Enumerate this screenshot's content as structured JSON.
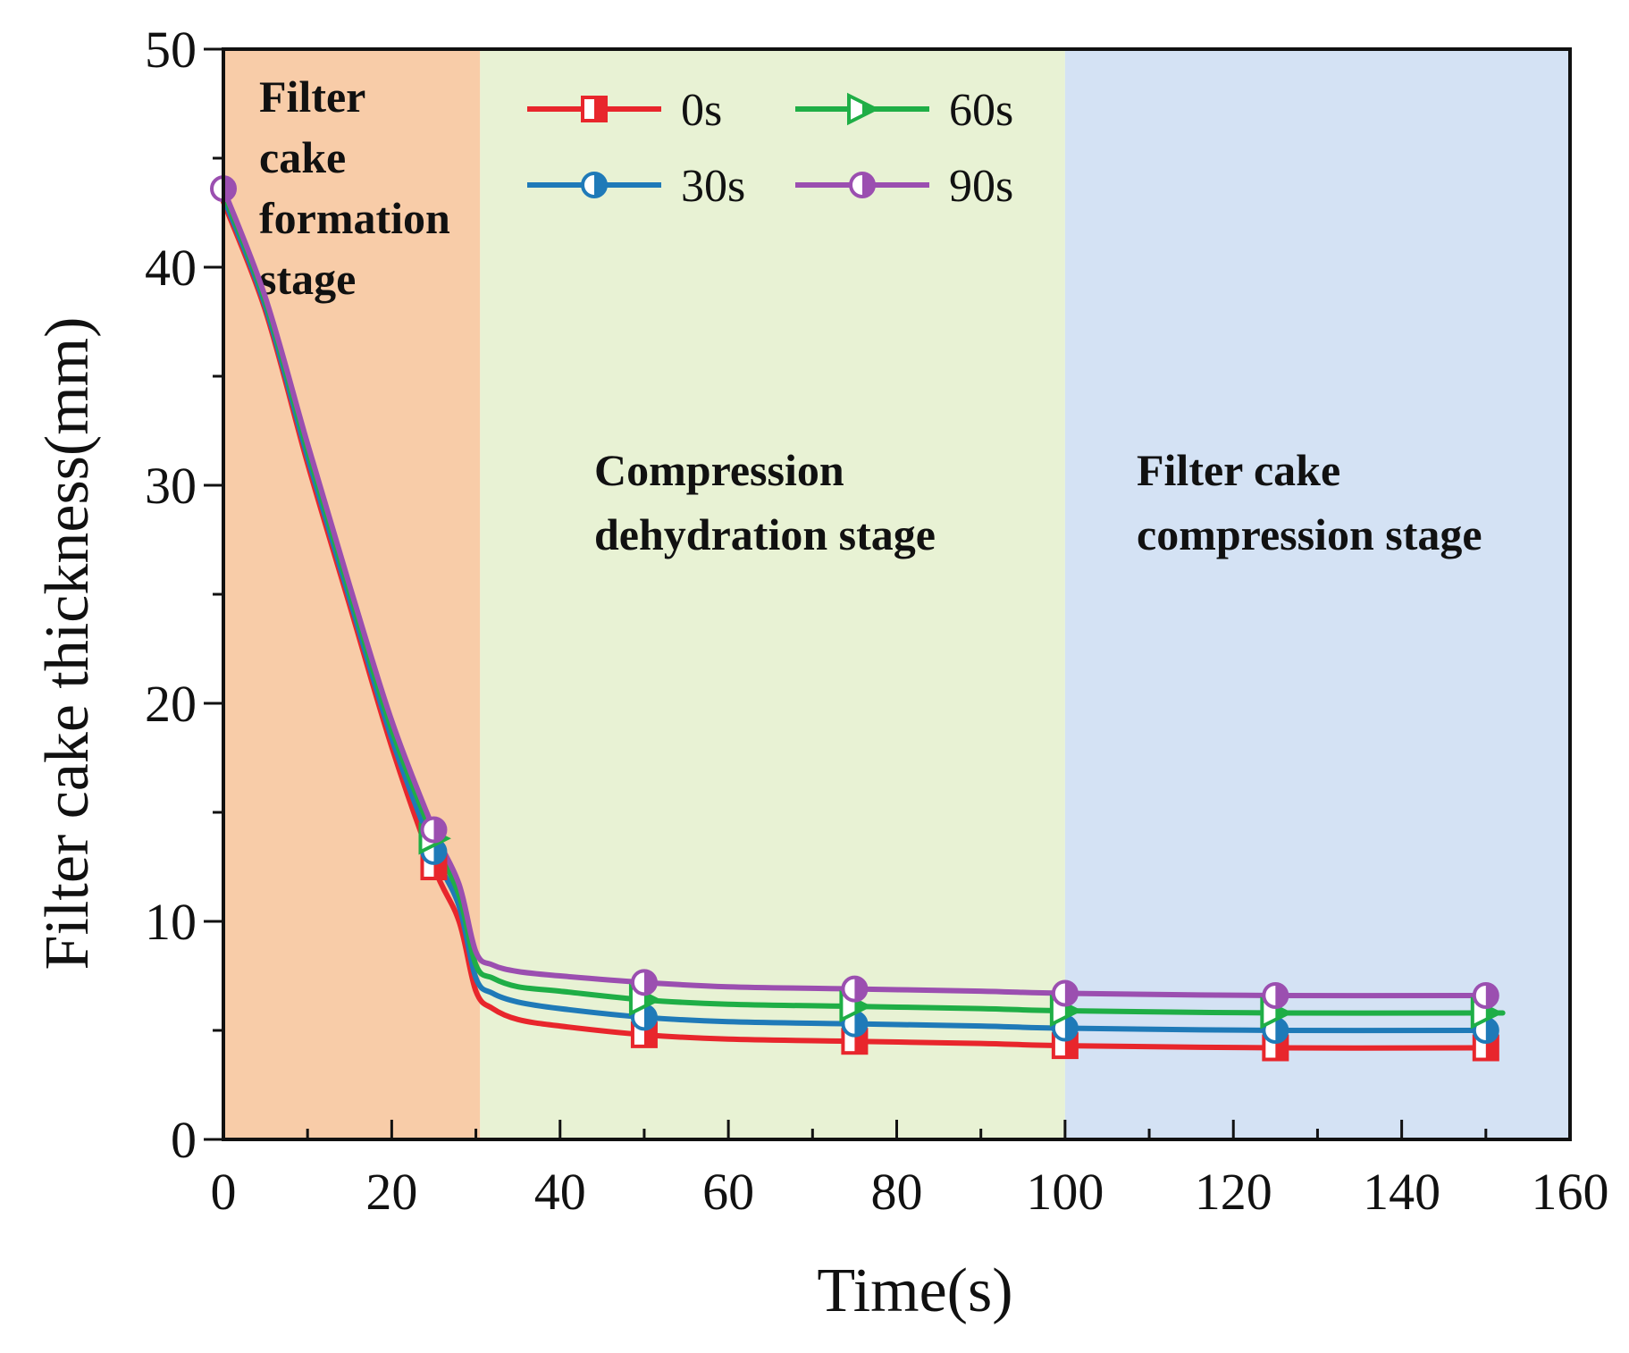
{
  "chart_data": {
    "type": "line",
    "xlabel": "Time(s)",
    "ylabel": "Filter cake thickness(mm)",
    "xlim": [
      0,
      160
    ],
    "ylim": [
      0,
      50
    ],
    "x_ticks": [
      0,
      20,
      40,
      60,
      80,
      100,
      120,
      140,
      160
    ],
    "y_ticks": [
      0,
      10,
      20,
      30,
      40,
      50
    ],
    "grid": false,
    "legend_position": "top-center",
    "stages": [
      {
        "label_lines": [
          "Filter",
          "cake",
          "formation",
          "stage"
        ],
        "x_range": [
          0,
          30.5
        ],
        "color": "#f8cca8"
      },
      {
        "label_lines": [
          "Compression",
          "dehydration stage"
        ],
        "x_range": [
          30.5,
          100
        ],
        "color": "#e8f2d4"
      },
      {
        "label_lines": [
          "Filter cake",
          "compression stage"
        ],
        "x_range": [
          100,
          160
        ],
        "color": "#d4e2f4"
      }
    ],
    "series": [
      {
        "name": "0s",
        "color": "#e8262c",
        "marker": "square-half",
        "x": [
          0,
          5,
          10,
          15,
          20,
          25,
          28,
          30,
          32,
          35,
          40,
          50,
          60,
          75,
          90,
          100,
          125,
          150
        ],
        "y": [
          43.0,
          38.0,
          31.0,
          24.5,
          18.0,
          12.5,
          10.0,
          6.8,
          6.0,
          5.5,
          5.2,
          4.8,
          4.6,
          4.5,
          4.4,
          4.3,
          4.2,
          4.2
        ],
        "marker_x": [
          25,
          50,
          75,
          100,
          125,
          150
        ],
        "marker_y": [
          12.5,
          4.8,
          4.5,
          4.3,
          4.2,
          4.2
        ]
      },
      {
        "name": "30s",
        "color": "#1f7ab8",
        "marker": "circle-half",
        "x": [
          0,
          5,
          10,
          15,
          20,
          25,
          28,
          30,
          32,
          35,
          40,
          50,
          60,
          75,
          90,
          100,
          125,
          150
        ],
        "y": [
          43.2,
          38.2,
          31.3,
          24.8,
          18.4,
          13.2,
          10.7,
          7.4,
          6.7,
          6.3,
          6.0,
          5.6,
          5.4,
          5.3,
          5.2,
          5.1,
          5.0,
          5.0
        ],
        "marker_x": [
          25,
          50,
          75,
          100,
          125,
          150
        ],
        "marker_y": [
          13.2,
          5.6,
          5.3,
          5.1,
          5.0,
          5.0
        ]
      },
      {
        "name": "60s",
        "color": "#1fae46",
        "marker": "triangle-half",
        "x": [
          0,
          5,
          10,
          15,
          20,
          25,
          28,
          30,
          32,
          35,
          40,
          50,
          60,
          75,
          90,
          100,
          125,
          152
        ],
        "y": [
          43.4,
          38.4,
          31.6,
          25.1,
          18.8,
          13.8,
          11.2,
          8.0,
          7.4,
          7.0,
          6.8,
          6.4,
          6.2,
          6.1,
          6.0,
          5.9,
          5.8,
          5.8
        ],
        "marker_x": [
          25,
          50,
          75,
          100,
          125,
          150
        ],
        "marker_y": [
          13.8,
          6.4,
          6.1,
          5.9,
          5.8,
          5.8
        ]
      },
      {
        "name": "90s",
        "color": "#9b4fb0",
        "marker": "circle-half",
        "x": [
          0,
          5,
          10,
          15,
          20,
          25,
          28,
          30,
          32,
          35,
          40,
          50,
          60,
          75,
          90,
          100,
          125,
          150
        ],
        "y": [
          43.6,
          38.6,
          31.9,
          25.4,
          19.2,
          14.2,
          11.7,
          8.6,
          8.0,
          7.7,
          7.5,
          7.2,
          7.0,
          6.9,
          6.8,
          6.7,
          6.6,
          6.6
        ],
        "marker_x": [
          0,
          25,
          50,
          75,
          100,
          125,
          150
        ],
        "marker_y": [
          43.6,
          14.2,
          7.2,
          6.9,
          6.7,
          6.6,
          6.6
        ]
      }
    ]
  }
}
